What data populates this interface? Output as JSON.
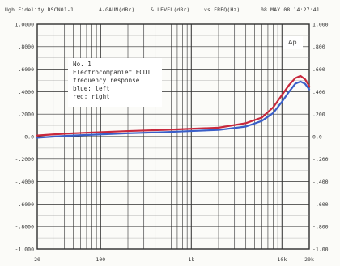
{
  "header": {
    "left": "Ugh Fidelity DSCN01-1",
    "mid1": "A-GAUN(dBr)",
    "mid2": "& LEVEL(dBr)",
    "mid3": "vs FREQ(Hz)",
    "right": "08 MAY 08 14:27:41"
  },
  "logo": "Ap",
  "legend_lines": [
    "No. 1",
    "Electrocompaniet ECD1",
    "frequency response",
    "blue: left",
    "red: right"
  ],
  "colors": {
    "left": "#3a5fc8",
    "right": "#c8283c",
    "grid": "#2f2f2f"
  },
  "chart_data": {
    "type": "line",
    "title": "Electrocompaniet ECD1 frequency response",
    "xlabel": "FREQ(Hz)",
    "ylabel": "A-GAUN(dBr)",
    "xscale": "log",
    "xlim": [
      20,
      20000
    ],
    "ylim": [
      -1.0,
      1.0
    ],
    "x_tick_labels": [
      "20",
      "100",
      "1k",
      "10k",
      "20k"
    ],
    "y_tick_labels_left": [
      "1.0000",
      ".8000",
      ".6000",
      ".4000",
      ".2000",
      "0.0",
      "-.2000",
      "-.4000",
      "-.6000",
      "-.8000",
      "-1.000"
    ],
    "y_tick_labels_right": [
      "1.000",
      ".800",
      ".600",
      ".400",
      ".200",
      "0.0",
      "-.200",
      "-.400",
      "-.600",
      "-.800",
      "-1.00"
    ],
    "grid": true,
    "series": [
      {
        "name": "left",
        "color": "#3a5fc8",
        "x": [
          20,
          30,
          50,
          100,
          200,
          500,
          1000,
          2000,
          4000,
          6000,
          8000,
          10000,
          12000,
          14000,
          16000,
          18000,
          20000
        ],
        "y": [
          -0.01,
          0.0,
          0.01,
          0.02,
          0.03,
          0.04,
          0.05,
          0.06,
          0.09,
          0.14,
          0.21,
          0.31,
          0.4,
          0.47,
          0.49,
          0.47,
          0.42
        ]
      },
      {
        "name": "right",
        "color": "#c8283c",
        "x": [
          20,
          30,
          50,
          100,
          200,
          500,
          1000,
          2000,
          4000,
          6000,
          8000,
          10000,
          12000,
          14000,
          16000,
          18000,
          20000
        ],
        "y": [
          0.01,
          0.02,
          0.03,
          0.04,
          0.05,
          0.06,
          0.07,
          0.08,
          0.12,
          0.17,
          0.26,
          0.37,
          0.46,
          0.52,
          0.54,
          0.51,
          0.45
        ]
      }
    ]
  }
}
